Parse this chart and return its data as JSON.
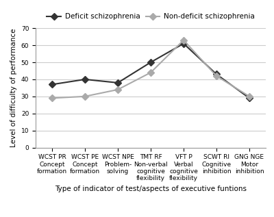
{
  "deficit": [
    37,
    40,
    38,
    50,
    61,
    43,
    29
  ],
  "non_deficit": [
    29,
    30,
    34,
    44,
    63,
    42,
    30
  ],
  "categories": [
    "WCST PR\nConcept\nformation",
    "WCST PE\nConcept\nformation",
    "WCST NPE\nProblem-\nsolving",
    "TMT RF\nNon-verbal\ncognitive\nflexibility",
    "VFT P\nVerbal\ncognitive\nflexibility",
    "SCWT RI\nCognitive\ninhibition",
    "GNG NGE\nMotor\ninhibition"
  ],
  "deficit_label": "Deficit schizophrenia",
  "non_deficit_label": "Non-deficit schizophrenia",
  "xlabel": "Type of indicator of test/aspects of executive funtions",
  "ylabel": "Level of difficulty of performance",
  "ylim": [
    0,
    70
  ],
  "yticks": [
    0,
    10,
    20,
    30,
    40,
    50,
    60,
    70
  ],
  "deficit_color": "#333333",
  "non_deficit_color": "#aaaaaa",
  "linewidth": 1.5,
  "markersize": 5,
  "grid_color": "#cccccc",
  "background_color": "#ffffff",
  "label_fontsize": 7.5,
  "tick_fontsize": 6.5,
  "legend_fontsize": 7.5,
  "xlabel_fontsize": 7.5
}
